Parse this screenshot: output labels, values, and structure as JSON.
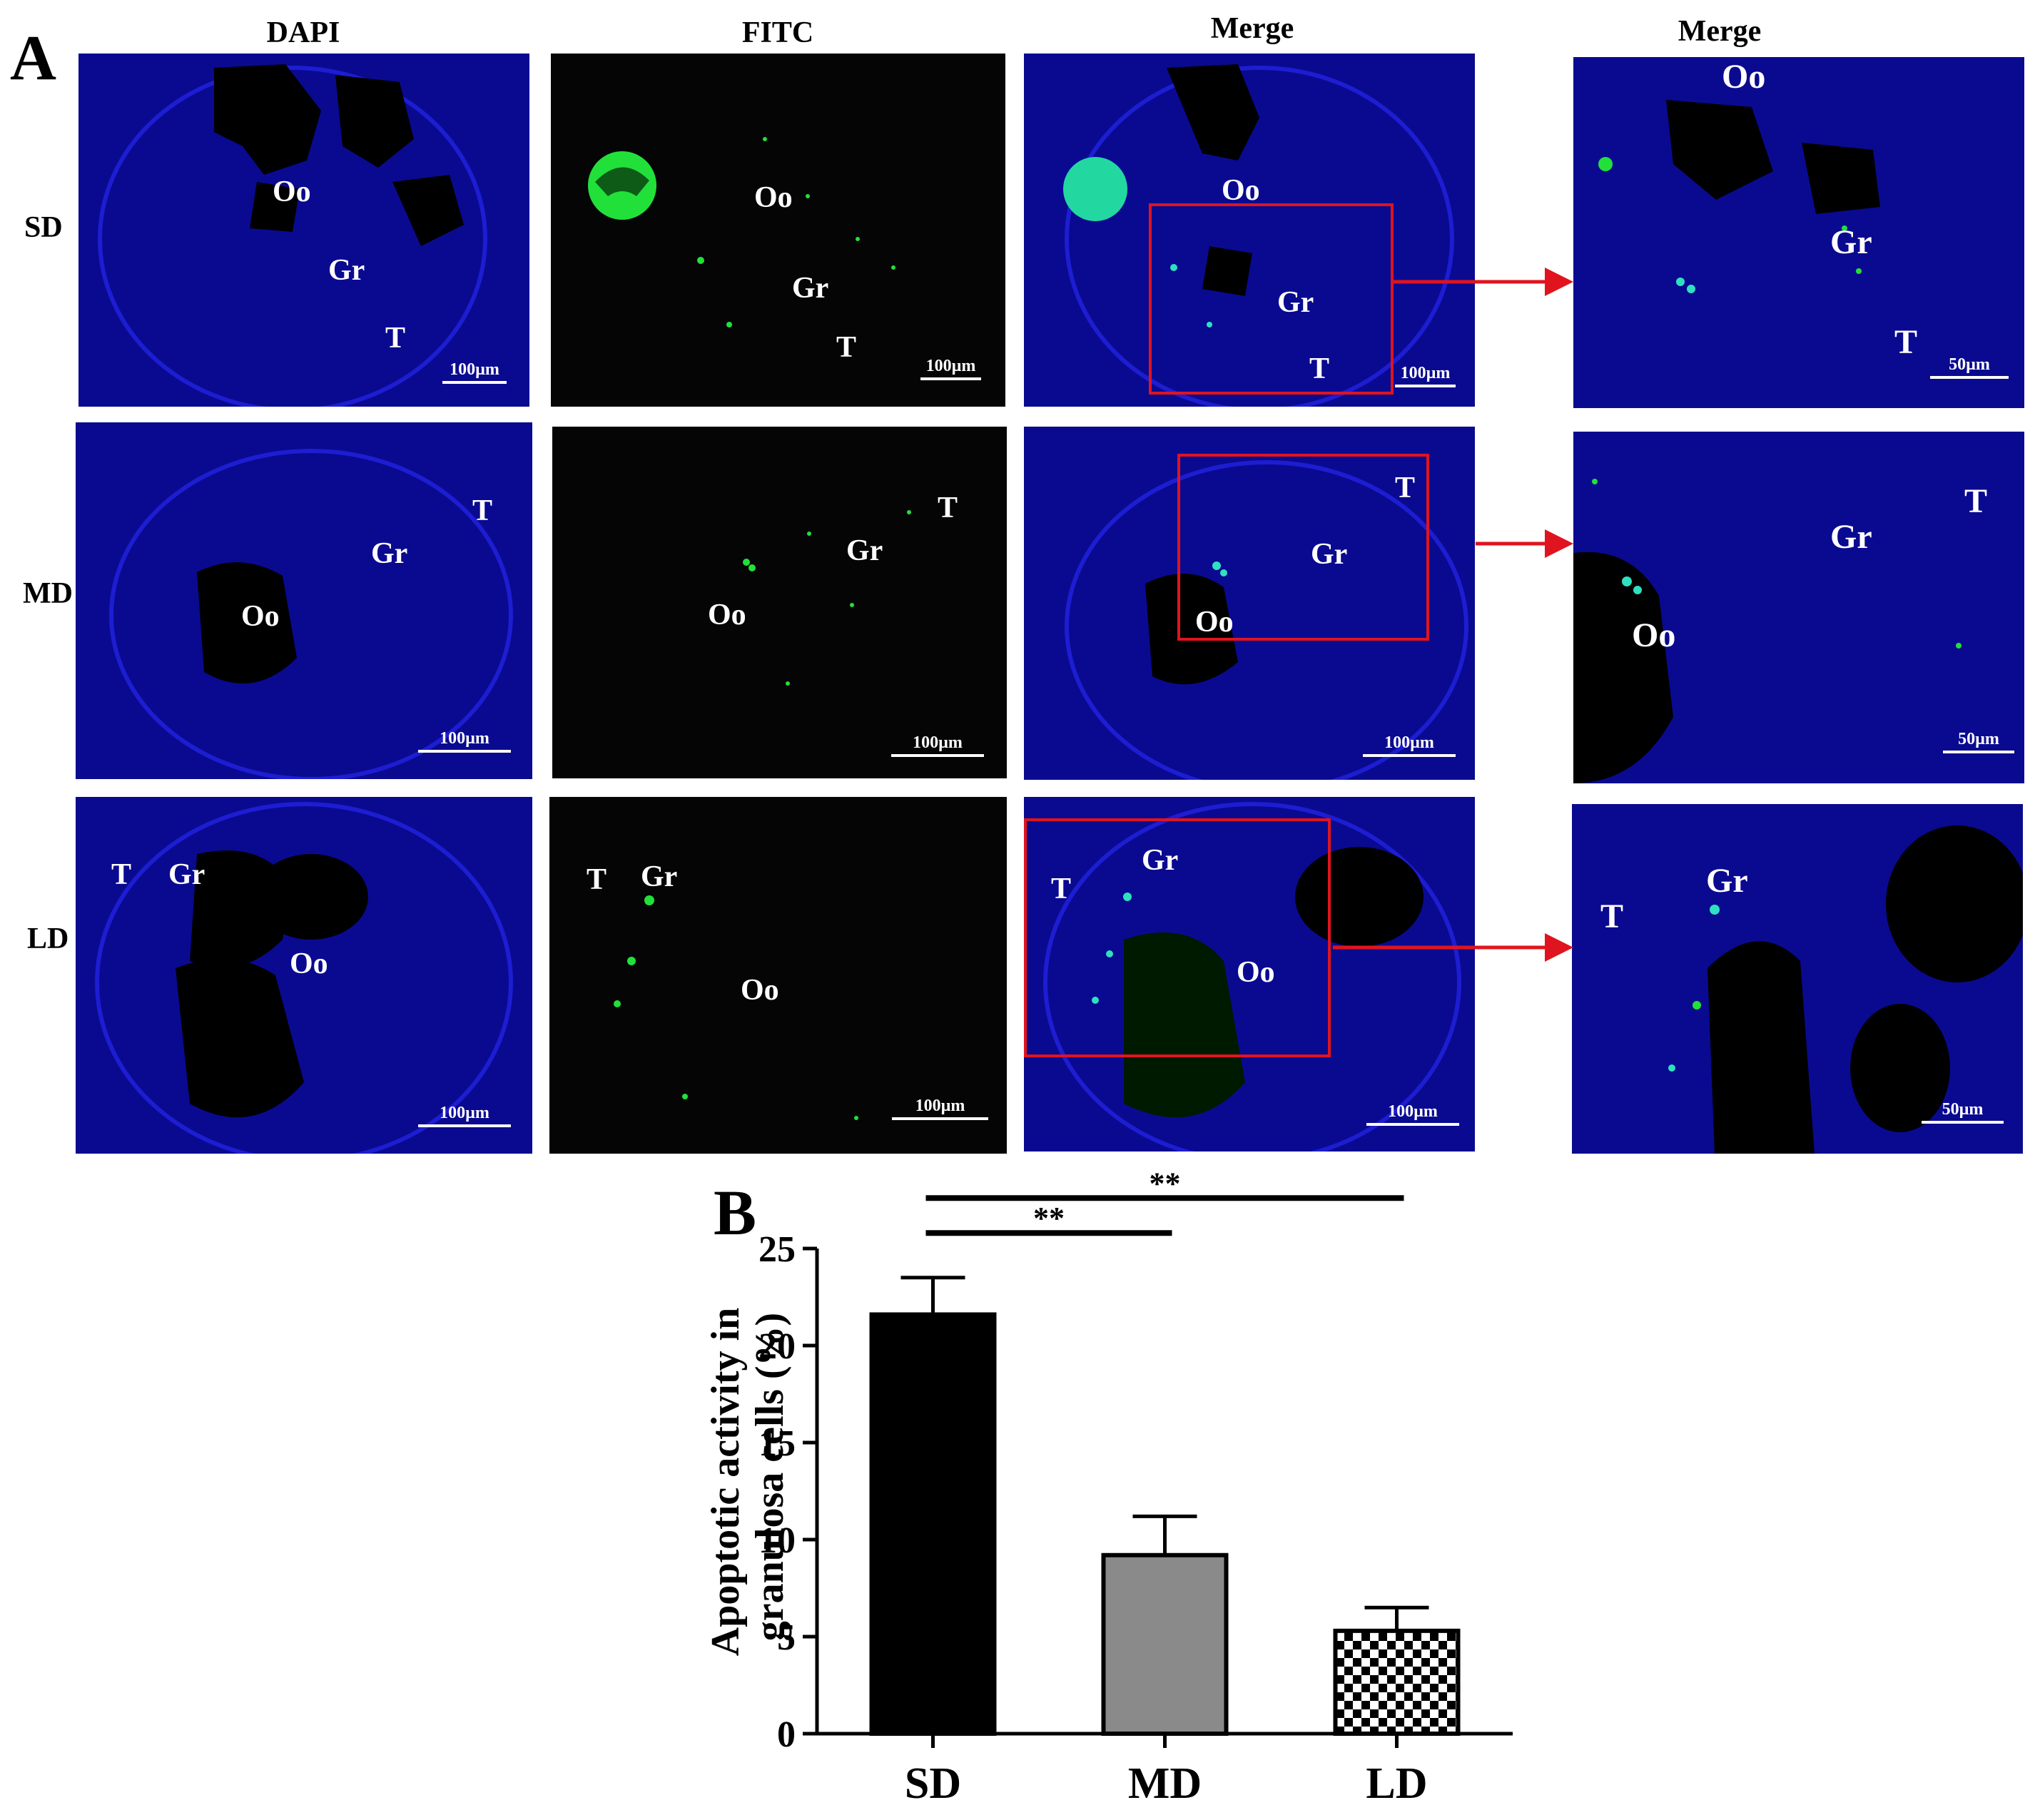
{
  "panel_a": {
    "letter": "A",
    "column_headers": [
      "DAPI",
      "FITC",
      "Merge",
      "Merge"
    ],
    "row_labels": [
      "SD",
      "MD",
      "LD"
    ],
    "region_labels": {
      "oocyte": "Oo",
      "granulosa": "Gr",
      "theca": "T"
    },
    "scale_bars": {
      "main": "100µm",
      "zoom": "50µm"
    },
    "colors": {
      "nuclei": "#1010c8",
      "apoptotic": "#22e03a",
      "roi": "#e0141e"
    }
  },
  "panel_b": {
    "letter": "B"
  },
  "chart_data": {
    "type": "bar",
    "categories": [
      "SD",
      "MD",
      "LD"
    ],
    "values": [
      21.6,
      9.2,
      5.3
    ],
    "errors": [
      1.9,
      2.0,
      1.2
    ],
    "ylabel_line1": "Apoptotic activity in",
    "ylabel_line2": "granulosa cells (%)",
    "ylim": [
      0,
      25
    ],
    "yticks": [
      0,
      5,
      10,
      15,
      20,
      25
    ],
    "bar_fills": [
      "#000000",
      "#8a8a8a",
      "checkerboard"
    ],
    "significance": [
      {
        "from": "SD",
        "to": "MD",
        "label": "**"
      },
      {
        "from": "SD",
        "to": "LD",
        "label": "**"
      }
    ]
  }
}
